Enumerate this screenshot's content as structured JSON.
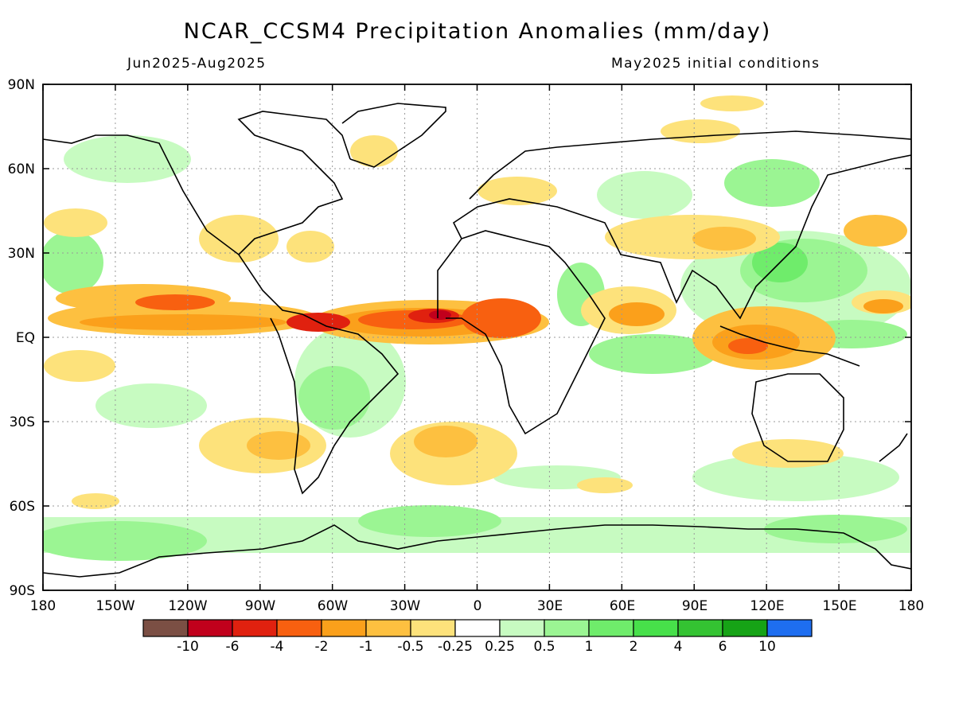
{
  "header": {
    "title": "NCAR_CCSM4 Precipitation Anomalies (mm/day)",
    "period": "Jun2025-Aug2025",
    "init": "May2025 initial conditions"
  },
  "map": {
    "projection": "cylindrical equidistant",
    "lon_range": [
      -180,
      180
    ],
    "lat_range": [
      -90,
      90
    ],
    "grid": true,
    "lat_ticks": [
      "90N",
      "60N",
      "30N",
      "EQ",
      "30S",
      "60S",
      "90S"
    ],
    "lon_ticks": [
      "180",
      "150W",
      "120W",
      "90W",
      "60W",
      "30W",
      "0",
      "30E",
      "60E",
      "90E",
      "120E",
      "150E",
      "180"
    ]
  },
  "colorbar": {
    "colors": [
      "#7b4f44",
      "#c1001c",
      "#e0210f",
      "#f86010",
      "#fba01b",
      "#fdc040",
      "#fde27b",
      "#ffffff",
      "#c7fbc1",
      "#9bf593",
      "#6fec6b",
      "#47e04a",
      "#34c332",
      "#16a316",
      "#1e6ef0"
    ],
    "labels": [
      "-10",
      "-6",
      "-4",
      "-2",
      "-1",
      "-0.5",
      "-0.25",
      "0.25",
      "0.5",
      "1",
      "2",
      "4",
      "6",
      "10"
    ]
  }
}
